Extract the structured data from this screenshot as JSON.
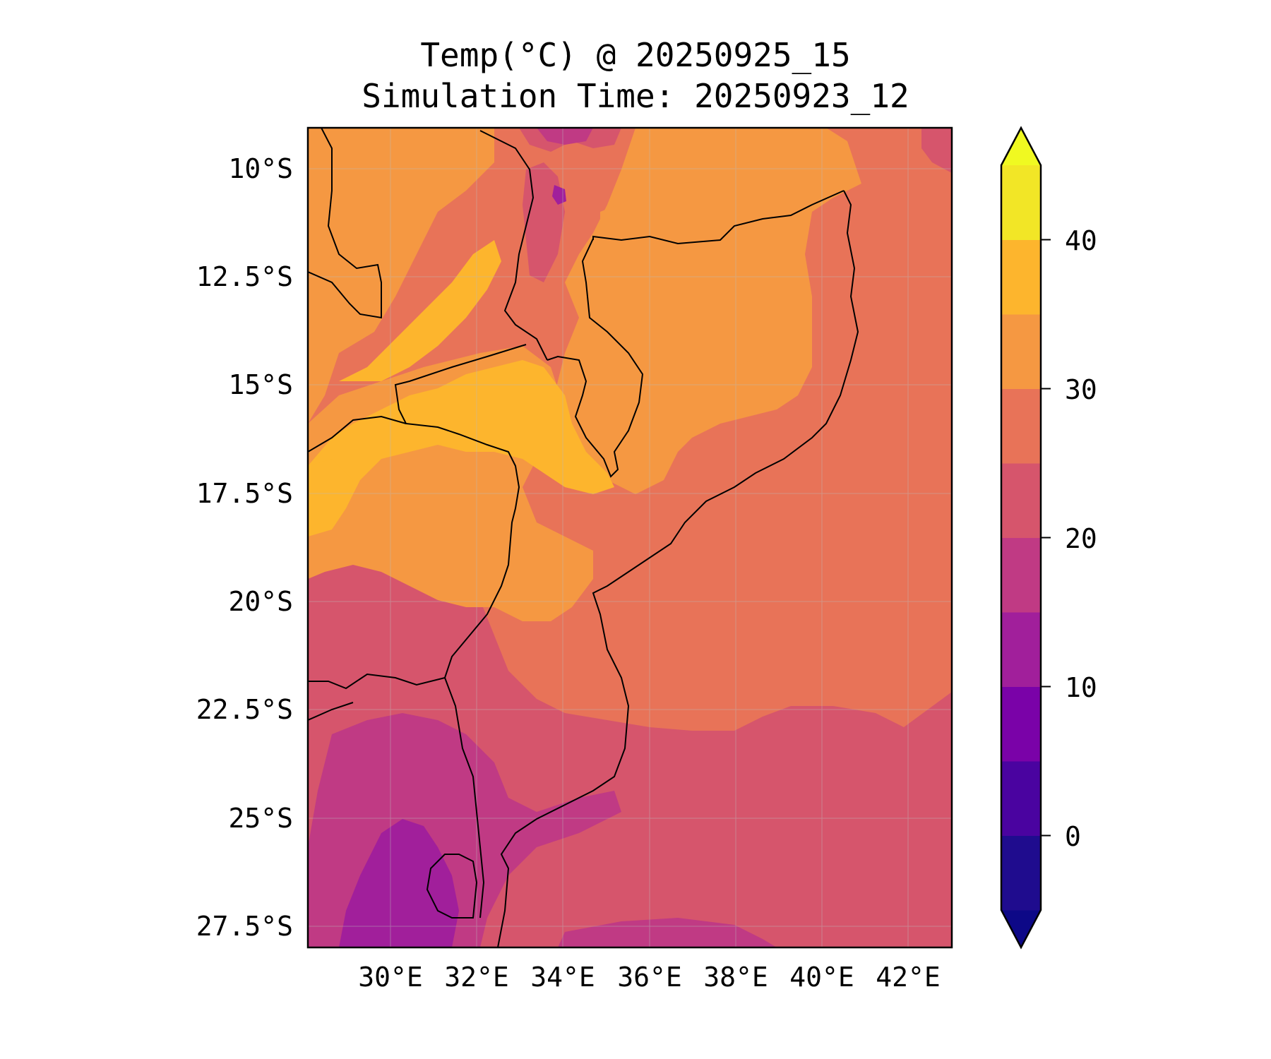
{
  "title": "Temp(°C) @ 20250925_15",
  "subtitle": "Simulation Time: 20250923_12",
  "lat_ticks": [
    "10°S",
    "12.5°S",
    "15°S",
    "17.5°S",
    "20°S",
    "22.5°S",
    "25°S",
    "27.5°S"
  ],
  "lon_ticks": [
    "30°E",
    "32°E",
    "34°E",
    "36°E",
    "38°E",
    "40°E",
    "42°E"
  ],
  "colorbar": {
    "ticks": [
      "40",
      "30",
      "20",
      "10",
      "0"
    ],
    "levels": [
      -5,
      0,
      5,
      10,
      15,
      20,
      25,
      30,
      35,
      40,
      45
    ],
    "colors": [
      "#1f0c8e",
      "#4a03a0",
      "#7a02a8",
      "#a11f9b",
      "#c03a84",
      "#d6556c",
      "#e87358",
      "#f59842",
      "#fdb52d",
      "#f2e626"
    ],
    "under_color": "#0d0887",
    "over_color": "#f0f921"
  },
  "map_colors": {
    "c10_15": "#a11f9b",
    "c15_20": "#c03a84",
    "c20_25": "#d6556c",
    "c25_30": "#e87358",
    "c30_35": "#f59842",
    "c35_40": "#fdb52d"
  }
}
